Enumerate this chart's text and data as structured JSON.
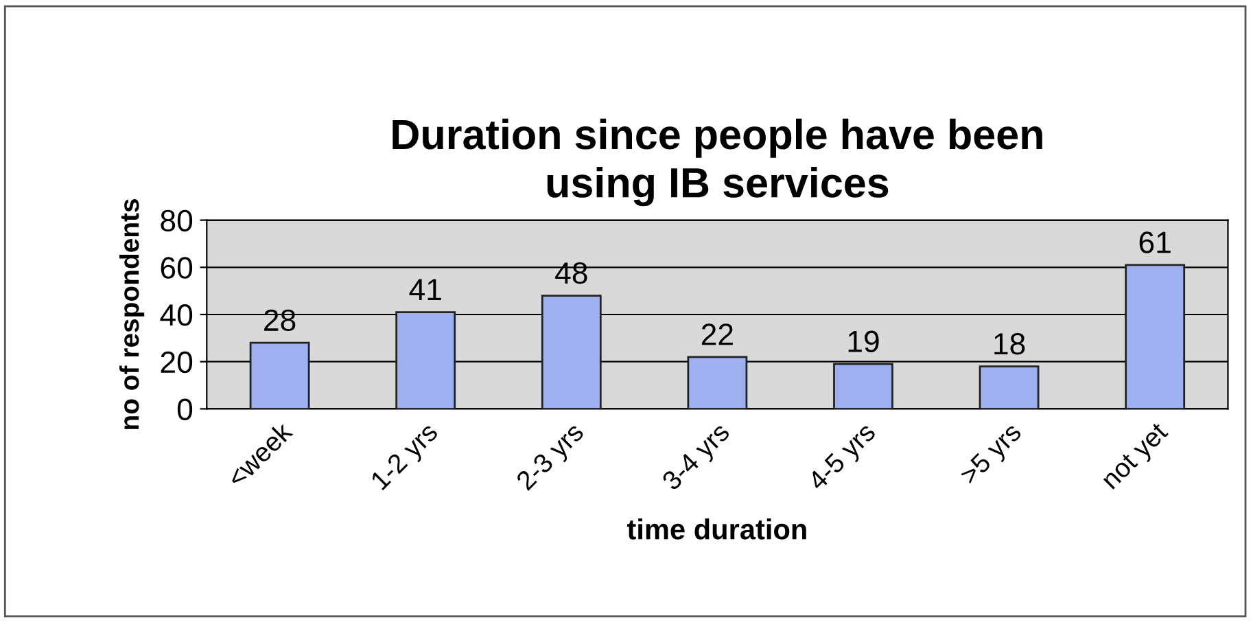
{
  "chart_data": {
    "type": "bar",
    "title": "Duration since people have been\nusing IB services",
    "xlabel": "time duration",
    "ylabel": "no of respondents",
    "categories": [
      "<week",
      "1-2 yrs",
      "2-3 yrs",
      "3-4 yrs",
      "4-5 yrs",
      ">5 yrs",
      "not yet"
    ],
    "values": [
      28,
      41,
      48,
      22,
      19,
      18,
      61
    ],
    "color": "#9fb0f0",
    "ylim": [
      0,
      80
    ],
    "yticks": [
      0,
      20,
      40,
      60,
      80
    ],
    "grid": "y",
    "data_labels": true,
    "legend": false
  }
}
